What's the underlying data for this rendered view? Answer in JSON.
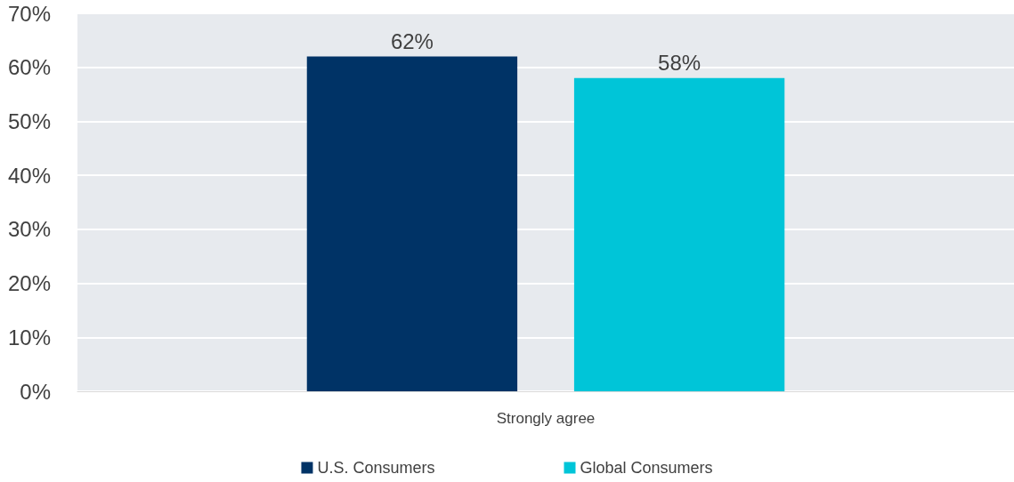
{
  "chart_data": {
    "type": "bar",
    "categories": [
      "Strongly agree"
    ],
    "series": [
      {
        "name": "U.S. Consumers",
        "color": "#003366",
        "values": [
          62
        ],
        "value_labels": [
          "62%"
        ]
      },
      {
        "name": "Global Consumers",
        "color": "#00c5d8",
        "values": [
          58
        ],
        "value_labels": [
          "58%"
        ]
      }
    ],
    "ylim": [
      0,
      70
    ],
    "yticks": [
      {
        "value": 0,
        "label": "0%"
      },
      {
        "value": 10,
        "label": "10%"
      },
      {
        "value": 20,
        "label": "20%"
      },
      {
        "value": 30,
        "label": "30%"
      },
      {
        "value": 40,
        "label": "40%"
      },
      {
        "value": 50,
        "label": "50%"
      },
      {
        "value": 60,
        "label": "60%"
      },
      {
        "value": 70,
        "label": "70%"
      }
    ],
    "grid": "y",
    "legend": "bottom"
  }
}
